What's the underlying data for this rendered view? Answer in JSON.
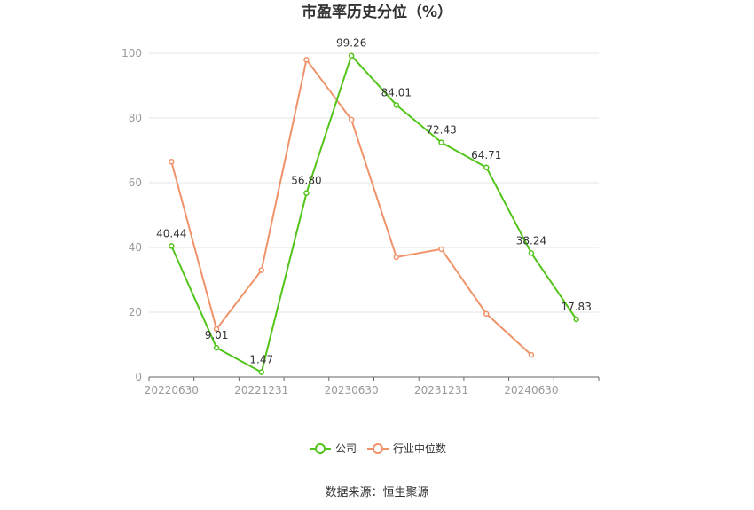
{
  "chart_data": {
    "type": "line",
    "title": "市盈率历史分位（%）",
    "x": [
      "20220630",
      "20220930",
      "20221231",
      "20230331",
      "20230630",
      "20230930",
      "20231231",
      "20240331",
      "20240630",
      "20240930"
    ],
    "x_tick_labels": [
      "20220630",
      "20221231",
      "20230630",
      "20231231",
      "20240630"
    ],
    "ylim": [
      0,
      100
    ],
    "y_ticks": [
      0,
      20,
      40,
      60,
      80,
      100
    ],
    "grid": true,
    "legend_position": "bottom",
    "series": [
      {
        "name": "公司",
        "color": "#52c41a",
        "values": [
          40.44,
          9.01,
          1.47,
          56.8,
          99.26,
          84.01,
          72.43,
          64.71,
          38.24,
          17.83
        ],
        "labels": [
          "40.44",
          "9.01",
          "1.47",
          "56.80",
          "99.26",
          "84.01",
          "72.43",
          "64.71",
          "38.24",
          "17.83"
        ]
      },
      {
        "name": "行业中位数",
        "color": "#f0936a",
        "values": [
          66.5,
          14.8,
          33.0,
          98.0,
          79.5,
          37.0,
          39.5,
          19.5,
          6.8,
          null
        ]
      }
    ]
  },
  "source_text": "数据来源：恒生聚源"
}
